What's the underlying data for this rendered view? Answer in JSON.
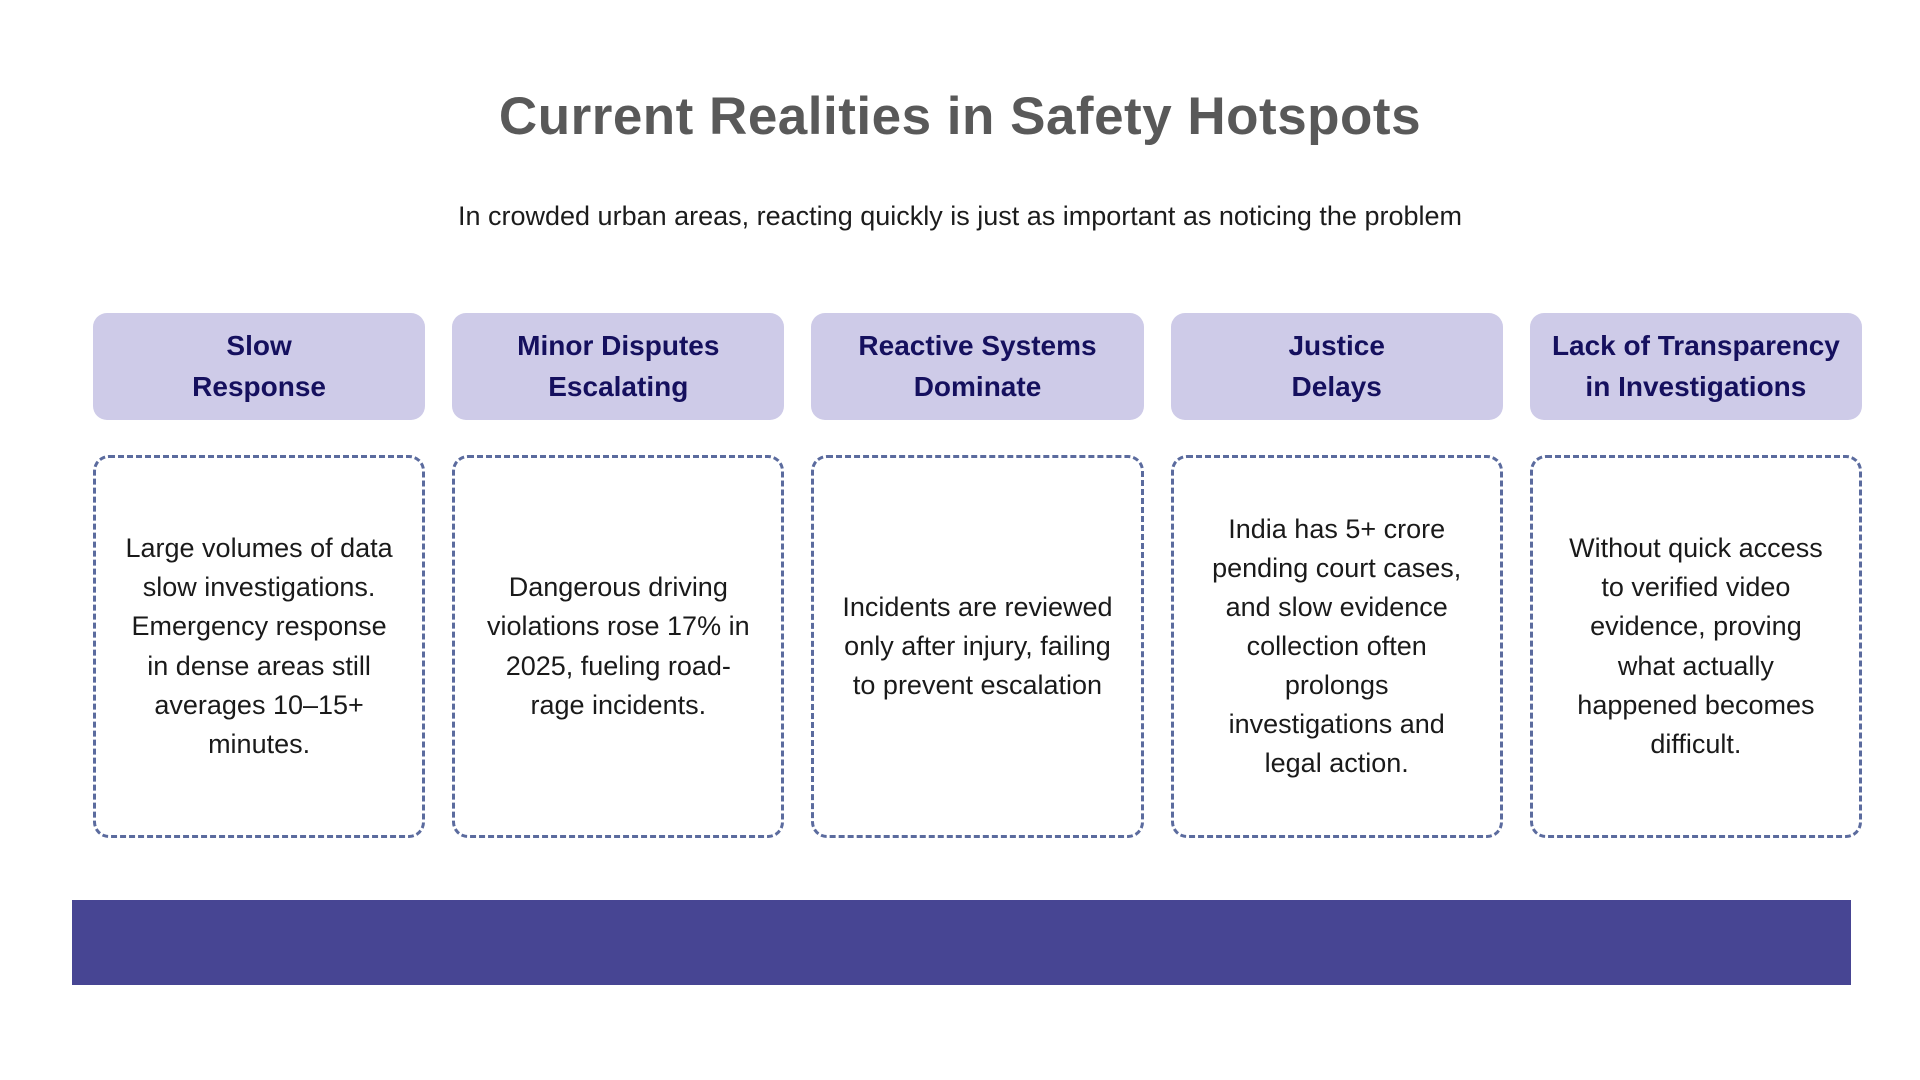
{
  "page": {
    "title": "Current Realities in Safety Hotspots",
    "subtitle": "In crowded urban areas, reacting quickly is just as important as noticing the problem"
  },
  "columns": [
    {
      "header": "Slow\nResponse",
      "body": "Large volumes of data slow investigations. Emergency response in dense areas still averages 10–15+ minutes."
    },
    {
      "header": "Minor Disputes\nEscalating",
      "body": "Dangerous driving violations rose 17% in 2025, fueling road-rage incidents."
    },
    {
      "header": "Reactive Systems\nDominate",
      "body": "Incidents are reviewed only after injury, failing to prevent escalation"
    },
    {
      "header": "Justice\nDelays",
      "body": "India has 5+ crore pending court cases, and slow evidence collection often prolongs investigations and legal action."
    },
    {
      "header": "Lack of Transparency\nin Investigations",
      "body": "Without quick access to verified video evidence, proving what actually happened becomes difficult."
    }
  ],
  "colors": {
    "title_text": "#595959",
    "subtitle_text": "#1c1c1c",
    "header_pill_bg": "#cecbe8",
    "header_pill_text": "#15105e",
    "card_border": "#5b6b9e",
    "body_text": "#1a1a1a",
    "footer_bar": "#474593"
  }
}
